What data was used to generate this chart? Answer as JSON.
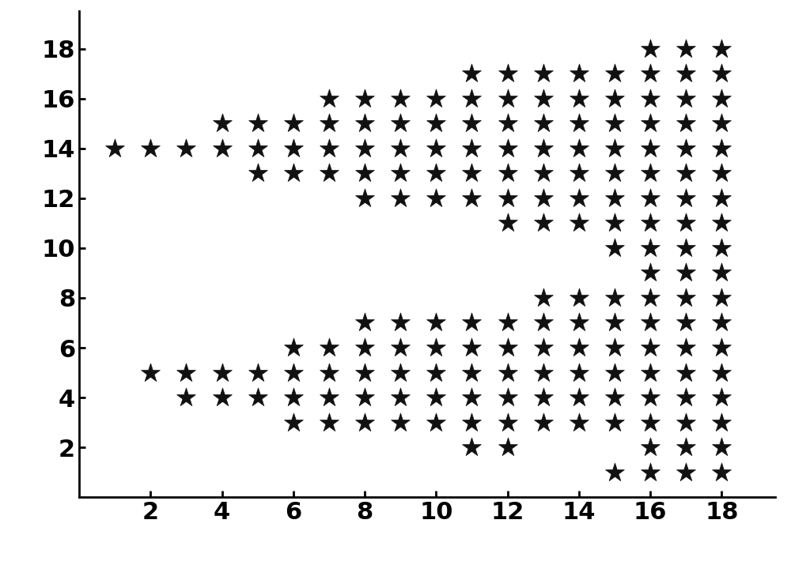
{
  "points_upper": [
    [
      1,
      14
    ],
    [
      2,
      14
    ],
    [
      3,
      14
    ],
    [
      4,
      14
    ],
    [
      4,
      15
    ],
    [
      5,
      13
    ],
    [
      5,
      14
    ],
    [
      5,
      15
    ],
    [
      6,
      13
    ],
    [
      6,
      14
    ],
    [
      6,
      15
    ],
    [
      7,
      13
    ],
    [
      7,
      14
    ],
    [
      7,
      15
    ],
    [
      7,
      16
    ],
    [
      8,
      12
    ],
    [
      8,
      13
    ],
    [
      8,
      14
    ],
    [
      8,
      15
    ],
    [
      8,
      16
    ],
    [
      9,
      12
    ],
    [
      9,
      13
    ],
    [
      9,
      14
    ],
    [
      9,
      15
    ],
    [
      9,
      16
    ],
    [
      10,
      12
    ],
    [
      10,
      13
    ],
    [
      10,
      14
    ],
    [
      10,
      15
    ],
    [
      10,
      16
    ],
    [
      11,
      12
    ],
    [
      11,
      13
    ],
    [
      11,
      14
    ],
    [
      11,
      15
    ],
    [
      11,
      16
    ],
    [
      11,
      17
    ],
    [
      12,
      11
    ],
    [
      12,
      12
    ],
    [
      12,
      13
    ],
    [
      12,
      14
    ],
    [
      12,
      15
    ],
    [
      12,
      16
    ],
    [
      12,
      17
    ],
    [
      13,
      11
    ],
    [
      13,
      12
    ],
    [
      13,
      13
    ],
    [
      13,
      14
    ],
    [
      13,
      15
    ],
    [
      13,
      16
    ],
    [
      13,
      17
    ],
    [
      14,
      11
    ],
    [
      14,
      12
    ],
    [
      14,
      13
    ],
    [
      14,
      14
    ],
    [
      14,
      15
    ],
    [
      14,
      16
    ],
    [
      14,
      17
    ],
    [
      15,
      10
    ],
    [
      15,
      11
    ],
    [
      15,
      12
    ],
    [
      15,
      13
    ],
    [
      15,
      14
    ],
    [
      15,
      15
    ],
    [
      15,
      16
    ],
    [
      15,
      17
    ],
    [
      16,
      9
    ],
    [
      16,
      10
    ],
    [
      16,
      11
    ],
    [
      16,
      12
    ],
    [
      16,
      13
    ],
    [
      16,
      14
    ],
    [
      16,
      15
    ],
    [
      16,
      16
    ],
    [
      16,
      17
    ],
    [
      16,
      18
    ],
    [
      17,
      9
    ],
    [
      17,
      10
    ],
    [
      17,
      11
    ],
    [
      17,
      12
    ],
    [
      17,
      13
    ],
    [
      17,
      14
    ],
    [
      17,
      15
    ],
    [
      17,
      16
    ],
    [
      17,
      17
    ],
    [
      17,
      18
    ],
    [
      18,
      9
    ],
    [
      18,
      10
    ],
    [
      18,
      11
    ],
    [
      18,
      12
    ],
    [
      18,
      13
    ],
    [
      18,
      14
    ],
    [
      18,
      15
    ],
    [
      18,
      16
    ],
    [
      18,
      17
    ],
    [
      18,
      18
    ]
  ],
  "points_lower": [
    [
      2,
      5
    ],
    [
      3,
      4
    ],
    [
      3,
      5
    ],
    [
      4,
      4
    ],
    [
      4,
      5
    ],
    [
      5,
      4
    ],
    [
      5,
      5
    ],
    [
      6,
      3
    ],
    [
      6,
      4
    ],
    [
      6,
      5
    ],
    [
      6,
      6
    ],
    [
      7,
      3
    ],
    [
      7,
      4
    ],
    [
      7,
      5
    ],
    [
      7,
      6
    ],
    [
      8,
      3
    ],
    [
      8,
      4
    ],
    [
      8,
      5
    ],
    [
      8,
      6
    ],
    [
      8,
      7
    ],
    [
      9,
      3
    ],
    [
      9,
      4
    ],
    [
      9,
      5
    ],
    [
      9,
      6
    ],
    [
      9,
      7
    ],
    [
      10,
      3
    ],
    [
      10,
      4
    ],
    [
      10,
      5
    ],
    [
      10,
      6
    ],
    [
      10,
      7
    ],
    [
      11,
      2
    ],
    [
      11,
      3
    ],
    [
      11,
      4
    ],
    [
      11,
      5
    ],
    [
      11,
      6
    ],
    [
      11,
      7
    ],
    [
      12,
      2
    ],
    [
      12,
      3
    ],
    [
      12,
      4
    ],
    [
      12,
      5
    ],
    [
      12,
      6
    ],
    [
      12,
      7
    ],
    [
      13,
      3
    ],
    [
      13,
      4
    ],
    [
      13,
      5
    ],
    [
      13,
      6
    ],
    [
      13,
      7
    ],
    [
      13,
      8
    ],
    [
      14,
      3
    ],
    [
      14,
      4
    ],
    [
      14,
      5
    ],
    [
      14,
      6
    ],
    [
      14,
      7
    ],
    [
      14,
      8
    ],
    [
      15,
      1
    ],
    [
      15,
      3
    ],
    [
      15,
      4
    ],
    [
      15,
      5
    ],
    [
      15,
      6
    ],
    [
      15,
      7
    ],
    [
      15,
      8
    ],
    [
      16,
      1
    ],
    [
      16,
      2
    ],
    [
      16,
      3
    ],
    [
      16,
      4
    ],
    [
      16,
      5
    ],
    [
      16,
      6
    ],
    [
      16,
      7
    ],
    [
      16,
      8
    ],
    [
      17,
      1
    ],
    [
      17,
      2
    ],
    [
      17,
      3
    ],
    [
      17,
      4
    ],
    [
      17,
      5
    ],
    [
      17,
      6
    ],
    [
      17,
      7
    ],
    [
      17,
      8
    ],
    [
      18,
      1
    ],
    [
      18,
      2
    ],
    [
      18,
      3
    ],
    [
      18,
      4
    ],
    [
      18,
      5
    ],
    [
      18,
      6
    ],
    [
      18,
      7
    ],
    [
      18,
      8
    ]
  ],
  "xlim": [
    0.0,
    19.5
  ],
  "ylim": [
    0.0,
    19.5
  ],
  "xticks": [
    2,
    4,
    6,
    8,
    10,
    12,
    14,
    16,
    18
  ],
  "yticks": [
    2,
    4,
    6,
    8,
    10,
    12,
    14,
    16,
    18
  ],
  "marker": "*",
  "markersize": 18,
  "color": "#111111",
  "background_color": "#ffffff",
  "tick_fontsize": 22,
  "tick_fontweight": "bold"
}
